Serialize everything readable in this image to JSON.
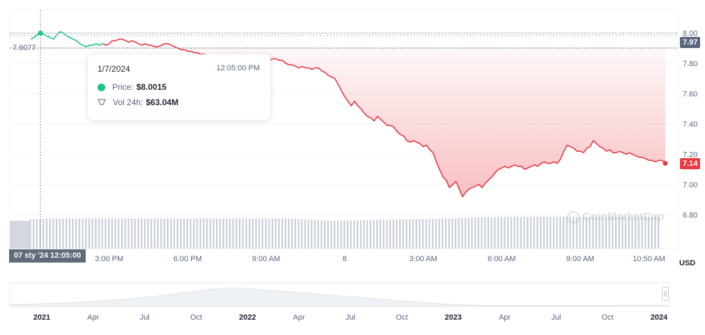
{
  "colors": {
    "up": "#16c784",
    "down": "#ea3943",
    "grid": "#eff2f5",
    "volume": "#c8ced8",
    "crosshair": "#8a94a6"
  },
  "tooltip": {
    "date": "1/7/2024",
    "time": "12:05:00 PM",
    "price_label": "Price:",
    "price_value": "$8.0015",
    "vol_label": "Vol 24h:",
    "vol_value": "$63.04M"
  },
  "crosshair": {
    "date_label": "07 sty '24   12:05:00",
    "price_label": "7.9077",
    "price": 7.9077,
    "x_index": 3
  },
  "current_price_label": "7.14",
  "reference_price_label": "7.97",
  "currency_label": "USD",
  "watermark": "CoinMarketCap",
  "chart_data": {
    "type": "line",
    "yticks": [
      "6.80",
      "7.00",
      "7.20",
      "7.40",
      "7.60",
      "7.80",
      "8.00"
    ],
    "ylim": [
      6.6,
      8.1
    ],
    "reference_price": 7.97,
    "xticks": [
      {
        "label": "3:00 PM",
        "index": 24
      },
      {
        "label": "6:00 PM",
        "index": 48
      },
      {
        "label": "9:00 AM",
        "index": 72
      },
      {
        "label": "8",
        "index": 96
      },
      {
        "label": "3:00 AM",
        "index": 120
      },
      {
        "label": "6:00 AM",
        "index": 144
      },
      {
        "label": "9:00 AM",
        "index": 168
      },
      {
        "label": "10:50 AM",
        "index": 189
      }
    ],
    "price": [
      7.96,
      7.97,
      7.99,
      8.0,
      7.99,
      7.98,
      7.97,
      7.96,
      7.99,
      8.01,
      8.0,
      7.98,
      7.97,
      7.96,
      7.95,
      7.93,
      7.92,
      7.91,
      7.92,
      7.92,
      7.93,
      7.92,
      7.93,
      7.92,
      7.93,
      7.95,
      7.95,
      7.96,
      7.96,
      7.95,
      7.94,
      7.95,
      7.94,
      7.93,
      7.92,
      7.93,
      7.92,
      7.92,
      7.91,
      7.91,
      7.92,
      7.93,
      7.93,
      7.92,
      7.91,
      7.9,
      7.89,
      7.89,
      7.88,
      7.88,
      7.87,
      7.87,
      7.86,
      7.86,
      7.85,
      7.85,
      7.84,
      7.84,
      7.84,
      7.83,
      7.83,
      7.82,
      7.82,
      7.82,
      7.81,
      7.81,
      7.8,
      7.8,
      7.8,
      7.79,
      7.79,
      7.79,
      7.8,
      7.82,
      7.83,
      7.83,
      7.82,
      7.82,
      7.8,
      7.79,
      7.79,
      7.78,
      7.77,
      7.78,
      7.77,
      7.77,
      7.76,
      7.77,
      7.77,
      7.75,
      7.74,
      7.72,
      7.71,
      7.7,
      7.66,
      7.62,
      7.58,
      7.55,
      7.52,
      7.55,
      7.52,
      7.5,
      7.47,
      7.45,
      7.44,
      7.42,
      7.45,
      7.43,
      7.41,
      7.39,
      7.39,
      7.38,
      7.35,
      7.33,
      7.32,
      7.29,
      7.28,
      7.29,
      7.28,
      7.27,
      7.25,
      7.26,
      7.23,
      7.21,
      7.15,
      7.1,
      7.05,
      7.03,
      6.98,
      7.0,
      7.02,
      6.97,
      6.92,
      6.95,
      6.97,
      6.98,
      6.99,
      7.0,
      6.98,
      7.01,
      7.03,
      7.05,
      7.08,
      7.1,
      7.11,
      7.12,
      7.11,
      7.12,
      7.13,
      7.12,
      7.12,
      7.1,
      7.11,
      7.12,
      7.13,
      7.12,
      7.14,
      7.15,
      7.14,
      7.14,
      7.15,
      7.14,
      7.17,
      7.22,
      7.26,
      7.25,
      7.24,
      7.22,
      7.22,
      7.21,
      7.24,
      7.25,
      7.29,
      7.27,
      7.25,
      7.24,
      7.22,
      7.23,
      7.21,
      7.21,
      7.22,
      7.21,
      7.2,
      7.21,
      7.2,
      7.19,
      7.18,
      7.18,
      7.17,
      7.16,
      7.16,
      7.15,
      7.16,
      7.16,
      7.14
    ],
    "volume_relative": [
      0.78,
      0.78,
      0.79,
      0.79,
      0.79,
      0.8,
      0.8,
      0.8,
      0.8,
      0.8,
      0.8,
      0.8,
      0.8,
      0.8,
      0.8,
      0.8,
      0.8,
      0.8,
      0.8,
      0.8,
      0.8,
      0.8,
      0.8,
      0.8,
      0.8,
      0.8,
      0.8,
      0.8,
      0.8,
      0.8,
      0.8,
      0.8,
      0.8,
      0.8,
      0.8,
      0.8,
      0.8,
      0.8,
      0.8,
      0.8,
      0.8,
      0.8,
      0.8,
      0.8,
      0.8,
      0.8,
      0.8,
      0.8,
      0.8,
      0.8,
      0.8,
      0.8,
      0.8,
      0.8,
      0.8,
      0.8,
      0.8,
      0.8,
      0.8,
      0.8,
      0.8,
      0.8,
      0.8,
      0.8,
      0.8,
      0.8,
      0.8,
      0.8,
      0.8,
      0.8,
      0.8,
      0.8,
      0.8,
      0.8,
      0.8,
      0.8,
      0.8,
      0.8,
      0.8,
      0.8,
      0.8,
      0.79,
      0.79,
      0.78,
      0.78,
      0.77,
      0.77,
      0.76,
      0.76,
      0.75,
      0.75,
      0.74,
      0.74,
      0.74,
      0.74,
      0.75,
      0.75,
      0.75,
      0.75,
      0.75,
      0.75,
      0.75,
      0.76,
      0.76,
      0.76,
      0.76,
      0.77,
      0.77,
      0.77,
      0.77,
      0.77,
      0.77,
      0.78,
      0.78,
      0.78,
      0.78,
      0.78,
      0.78,
      0.78,
      0.78,
      0.79,
      0.79,
      0.79,
      0.79,
      0.79,
      0.79,
      0.8,
      0.8,
      0.8,
      0.8,
      0.8,
      0.81,
      0.81,
      0.82,
      0.82,
      0.83,
      0.83,
      0.84,
      0.84,
      0.84,
      0.84,
      0.84,
      0.84,
      0.84,
      0.84,
      0.85,
      0.85,
      0.85,
      0.85,
      0.85,
      0.85,
      0.85,
      0.85,
      0.85,
      0.85,
      0.85,
      0.85,
      0.85,
      0.85,
      0.85,
      0.85,
      0.85,
      0.85,
      0.85,
      0.85,
      0.85,
      0.85,
      0.85,
      0.85,
      0.85,
      0.85,
      0.85,
      0.85,
      0.85,
      0.85,
      0.85,
      0.85,
      0.85,
      0.85,
      0.85,
      0.85,
      0.85,
      0.85,
      0.85,
      0.85,
      0.85,
      0.85,
      0.85,
      0.85,
      0.85,
      0.85,
      0.85,
      0.85
    ],
    "navigator": {
      "xticks": [
        {
          "label": "2021",
          "bold": true
        },
        {
          "label": "Apr",
          "bold": false
        },
        {
          "label": "Jul",
          "bold": false
        },
        {
          "label": "Oct",
          "bold": false
        },
        {
          "label": "2022",
          "bold": true
        },
        {
          "label": "Apr",
          "bold": false
        },
        {
          "label": "Jul",
          "bold": false
        },
        {
          "label": "Oct",
          "bold": false
        },
        {
          "label": "2023",
          "bold": true
        },
        {
          "label": "Apr",
          "bold": false
        },
        {
          "label": "Jul",
          "bold": false
        },
        {
          "label": "Oct",
          "bold": false
        },
        {
          "label": "2024",
          "bold": true
        }
      ],
      "values": [
        0.1,
        0.12,
        0.15,
        0.18,
        0.22,
        0.28,
        0.35,
        0.42,
        0.5,
        0.6,
        0.72,
        0.85,
        0.95,
        1.0,
        0.98,
        0.92,
        0.85,
        0.78,
        0.7,
        0.62,
        0.55,
        0.48,
        0.4,
        0.32,
        0.25,
        0.18,
        0.12,
        0.08,
        0.06,
        0.05,
        0.05,
        0.05,
        0.05,
        0.05,
        0.05,
        0.05,
        0.06,
        0.06,
        0.06,
        0.06
      ]
    }
  }
}
